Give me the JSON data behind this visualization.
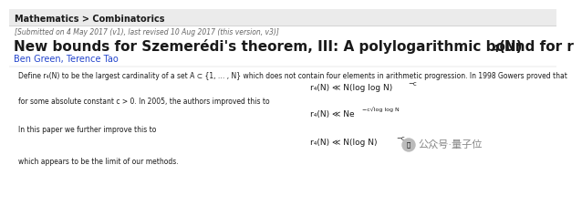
{
  "white_bg": "#ffffff",
  "header_bg": "#ebebeb",
  "header_text": "Mathematics > Combinatorics",
  "submitted_text": "[Submitted on 4 May 2017 (v1), last revised 10 Aug 2017 (this version, v3)]",
  "title_main": "New bounds for Szemerédi's theorem, III: A polylogarithmic bound for r",
  "title_sub": "4",
  "title_end": "(N)",
  "authors": "Ben Green, Terence Tao",
  "body1": "Define r₄(N) to be the largest cardinality of a set A ⊂ {1, … , N} which does not contain four elements in arithmetic progression. In 1998 Gowers proved that",
  "formula1_main": "r₄(N) ≪ N(log log N)",
  "formula1_exp": "−c",
  "body2": "for some absolute constant c > 0. In 2005, the authors improved this to",
  "formula2_main": "r₄(N) ≪ Ne",
  "formula2_exp": "−c√log log N",
  "body3": "In this paper we further improve this to",
  "formula3_main": "r₄(N) ≪ N(log N)",
  "formula3_exp": "−c",
  "formula3_end": ";",
  "body4": "which appears to be the limit of our methods.",
  "watermark": "公众号·量子位",
  "accent_color": "#2244cc",
  "text_color": "#1a1a1a",
  "header_color": "#1a1a1a",
  "gray_color": "#666666",
  "sep_color": "#cccccc"
}
